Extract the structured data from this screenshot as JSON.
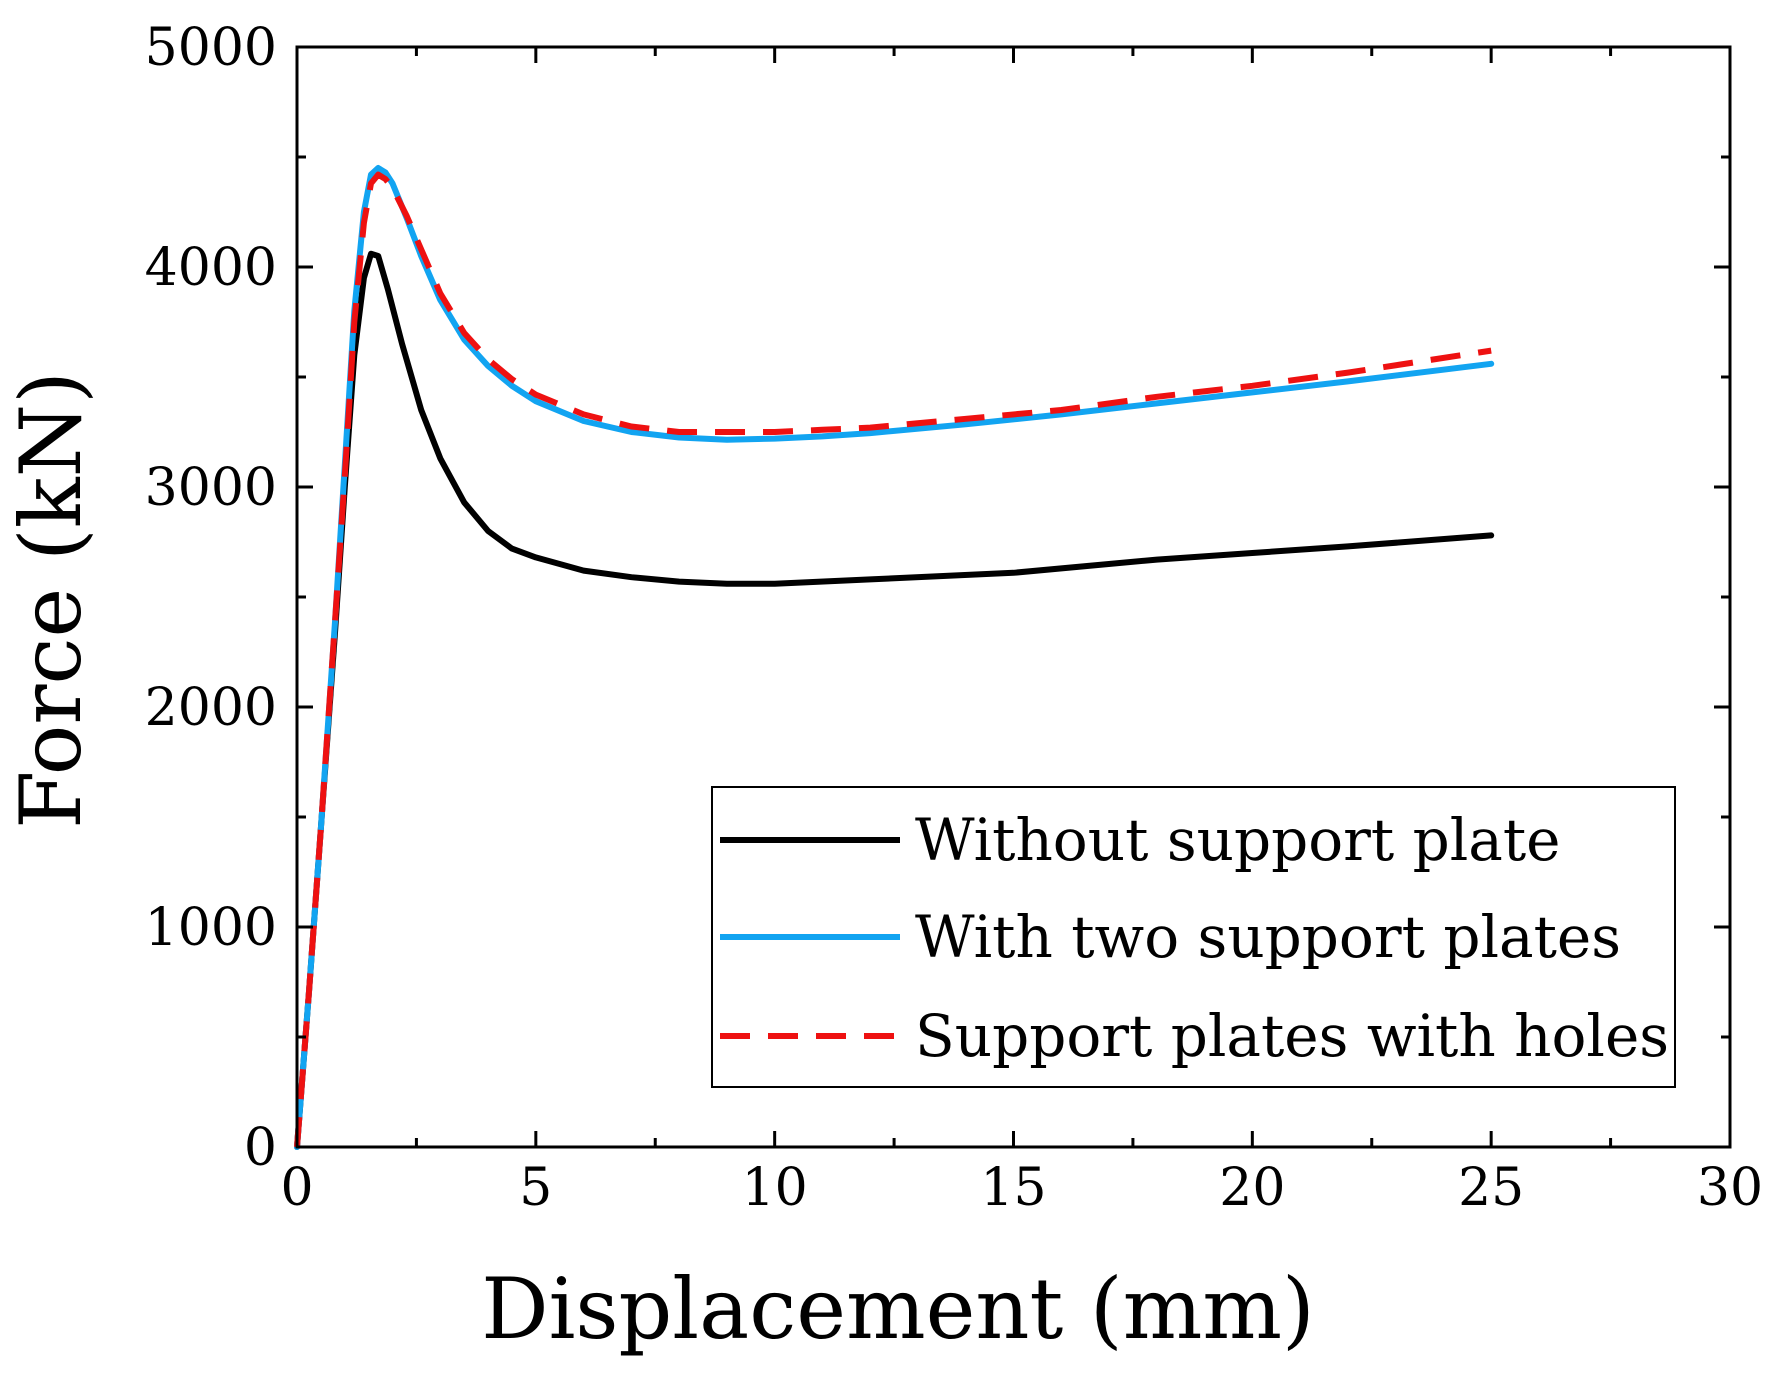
{
  "chart_data": {
    "type": "line",
    "title": "",
    "xlabel": "Displacement (mm)",
    "ylabel": "Force (kN)",
    "xlim": [
      0,
      30
    ],
    "ylim": [
      0,
      5000
    ],
    "xticks": [
      "0",
      "5",
      "10",
      "15",
      "20",
      "25",
      "30"
    ],
    "yticks": [
      "0",
      "1000",
      "2000",
      "3000",
      "4000",
      "5000"
    ],
    "legend_position": "bottom-right",
    "series": [
      {
        "name": "Without support plate",
        "color": "#000000",
        "dash": "solid",
        "points": [
          [
            0,
            0
          ],
          [
            0.25,
            700
          ],
          [
            0.5,
            1450
          ],
          [
            0.8,
            2350
          ],
          [
            1.0,
            3000
          ],
          [
            1.2,
            3600
          ],
          [
            1.4,
            3950
          ],
          [
            1.55,
            4060
          ],
          [
            1.7,
            4050
          ],
          [
            1.9,
            3900
          ],
          [
            2.2,
            3650
          ],
          [
            2.6,
            3350
          ],
          [
            3.0,
            3130
          ],
          [
            3.5,
            2930
          ],
          [
            4.0,
            2800
          ],
          [
            4.5,
            2720
          ],
          [
            5.0,
            2680
          ],
          [
            6.0,
            2620
          ],
          [
            7.0,
            2590
          ],
          [
            8.0,
            2570
          ],
          [
            9.0,
            2560
          ],
          [
            10.0,
            2560
          ],
          [
            12.0,
            2580
          ],
          [
            15.0,
            2610
          ],
          [
            18.0,
            2670
          ],
          [
            20.0,
            2700
          ],
          [
            22.0,
            2730
          ],
          [
            25.0,
            2780
          ]
        ]
      },
      {
        "name": "With two support plates",
        "color": "#12A4F1",
        "dash": "solid",
        "points": [
          [
            0,
            0
          ],
          [
            0.25,
            700
          ],
          [
            0.5,
            1450
          ],
          [
            0.8,
            2400
          ],
          [
            1.0,
            3100
          ],
          [
            1.2,
            3800
          ],
          [
            1.4,
            4250
          ],
          [
            1.55,
            4420
          ],
          [
            1.7,
            4450
          ],
          [
            1.85,
            4430
          ],
          [
            2.0,
            4380
          ],
          [
            2.3,
            4220
          ],
          [
            2.6,
            4050
          ],
          [
            3.0,
            3850
          ],
          [
            3.5,
            3670
          ],
          [
            4.0,
            3550
          ],
          [
            4.5,
            3460
          ],
          [
            5.0,
            3390
          ],
          [
            6.0,
            3300
          ],
          [
            7.0,
            3250
          ],
          [
            8.0,
            3225
          ],
          [
            9.0,
            3215
          ],
          [
            10.0,
            3220
          ],
          [
            11.0,
            3230
          ],
          [
            12.0,
            3245
          ],
          [
            14.0,
            3285
          ],
          [
            16.0,
            3330
          ],
          [
            18.0,
            3380
          ],
          [
            20.0,
            3430
          ],
          [
            22.0,
            3480
          ],
          [
            25.0,
            3560
          ]
        ]
      },
      {
        "name": "Support plates with holes",
        "color": "#EE1111",
        "dash": "dashed",
        "points": [
          [
            0,
            0
          ],
          [
            0.25,
            700
          ],
          [
            0.5,
            1450
          ],
          [
            0.8,
            2400
          ],
          [
            1.0,
            3050
          ],
          [
            1.2,
            3750
          ],
          [
            1.4,
            4200
          ],
          [
            1.55,
            4380
          ],
          [
            1.7,
            4420
          ],
          [
            1.85,
            4400
          ],
          [
            2.0,
            4360
          ],
          [
            2.3,
            4230
          ],
          [
            2.6,
            4080
          ],
          [
            3.0,
            3880
          ],
          [
            3.5,
            3700
          ],
          [
            4.0,
            3580
          ],
          [
            4.5,
            3490
          ],
          [
            5.0,
            3420
          ],
          [
            6.0,
            3330
          ],
          [
            7.0,
            3275
          ],
          [
            8.0,
            3250
          ],
          [
            9.0,
            3250
          ],
          [
            10.0,
            3250
          ],
          [
            11.0,
            3260
          ],
          [
            12.0,
            3270
          ],
          [
            14.0,
            3310
          ],
          [
            16.0,
            3350
          ],
          [
            18.0,
            3410
          ],
          [
            20.0,
            3460
          ],
          [
            22.0,
            3520
          ],
          [
            25.0,
            3620
          ]
        ]
      }
    ]
  }
}
